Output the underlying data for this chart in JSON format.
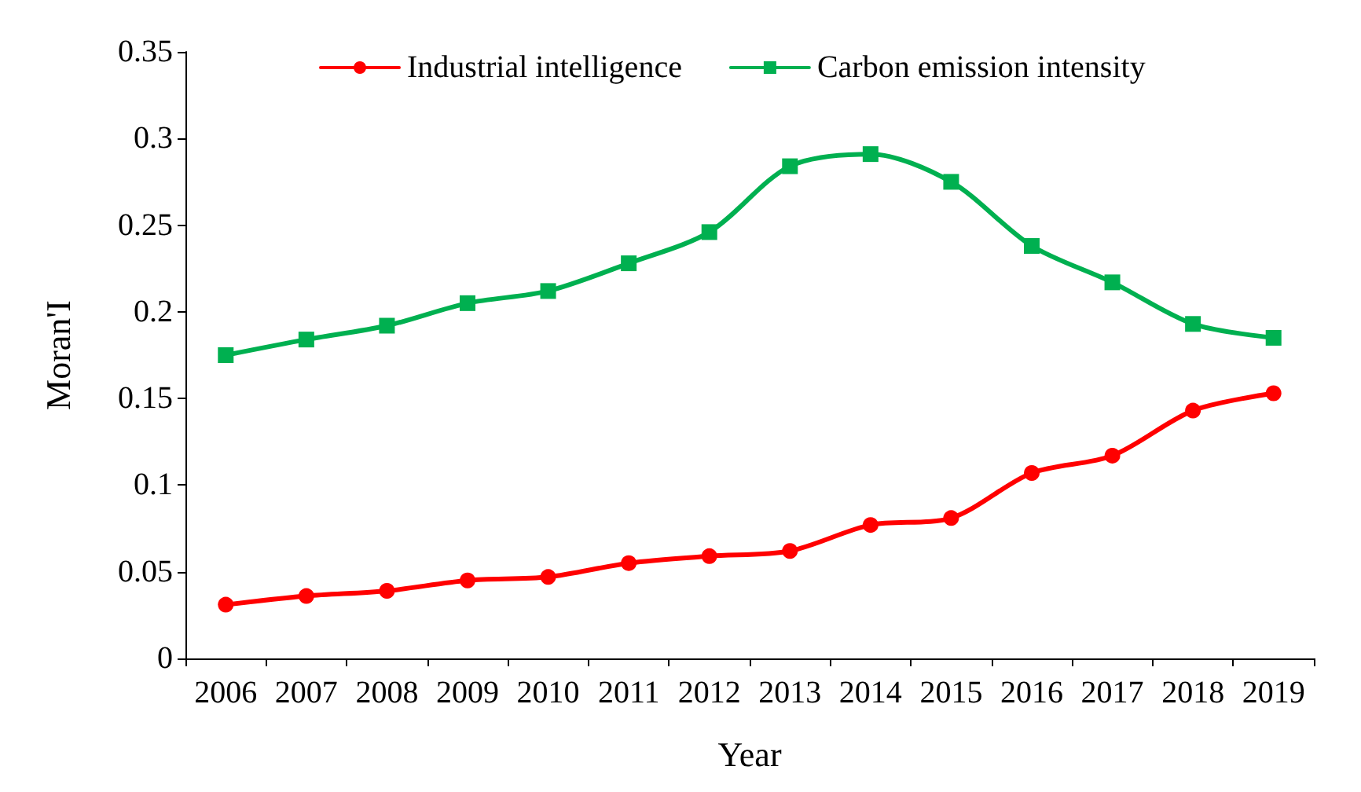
{
  "chart_data": {
    "type": "line",
    "xlabel": "Year",
    "ylabel": "Moran'I",
    "categories": [
      "2006",
      "2007",
      "2008",
      "2009",
      "2010",
      "2011",
      "2012",
      "2013",
      "2014",
      "2015",
      "2016",
      "2017",
      "2018",
      "2019"
    ],
    "series": [
      {
        "name": "Industrial intelligence",
        "color": "#ff0000",
        "marker": "circle",
        "values": [
          0.031,
          0.036,
          0.039,
          0.045,
          0.047,
          0.055,
          0.059,
          0.062,
          0.077,
          0.081,
          0.107,
          0.117,
          0.143,
          0.153
        ]
      },
      {
        "name": "Carbon emission intensity",
        "color": "#00b050",
        "marker": "square",
        "values": [
          0.175,
          0.184,
          0.192,
          0.205,
          0.212,
          0.228,
          0.246,
          0.284,
          0.291,
          0.275,
          0.238,
          0.217,
          0.193,
          0.185
        ]
      }
    ],
    "ylim": [
      0,
      0.35
    ],
    "yticks": [
      0,
      0.05,
      0.1,
      0.15,
      0.2,
      0.25,
      0.3,
      0.35
    ],
    "grid": false,
    "legend": "top",
    "line_style": "solid"
  }
}
